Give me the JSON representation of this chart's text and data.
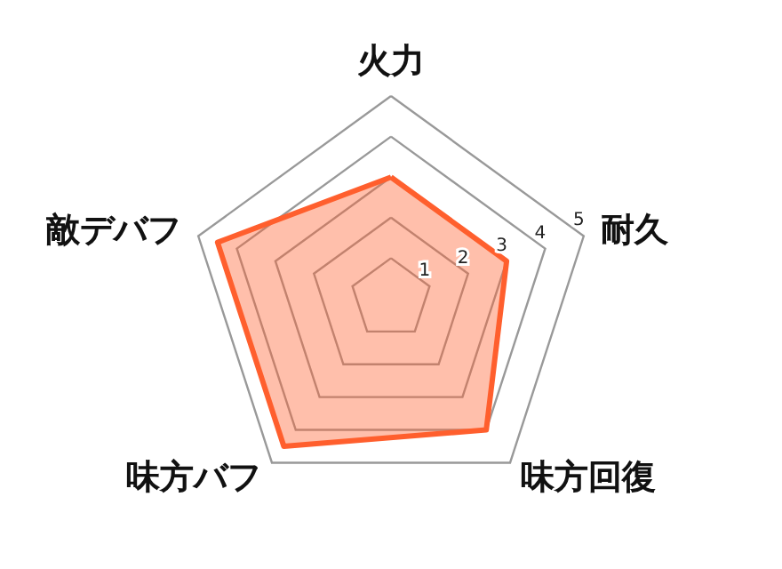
{
  "chart_data": {
    "type": "radar",
    "categories": [
      "火力",
      "耐久",
      "味方回復",
      "味方バフ",
      "敵デバフ"
    ],
    "series": [
      {
        "color": "#ff5f2e",
        "values": [
          3,
          3,
          4,
          4.5,
          4.5
        ]
      }
    ],
    "ylim": [
      0,
      5
    ],
    "yticks": [
      1,
      2,
      3,
      4,
      5
    ],
    "grid": true,
    "marker": "none",
    "line_style": "solid"
  }
}
